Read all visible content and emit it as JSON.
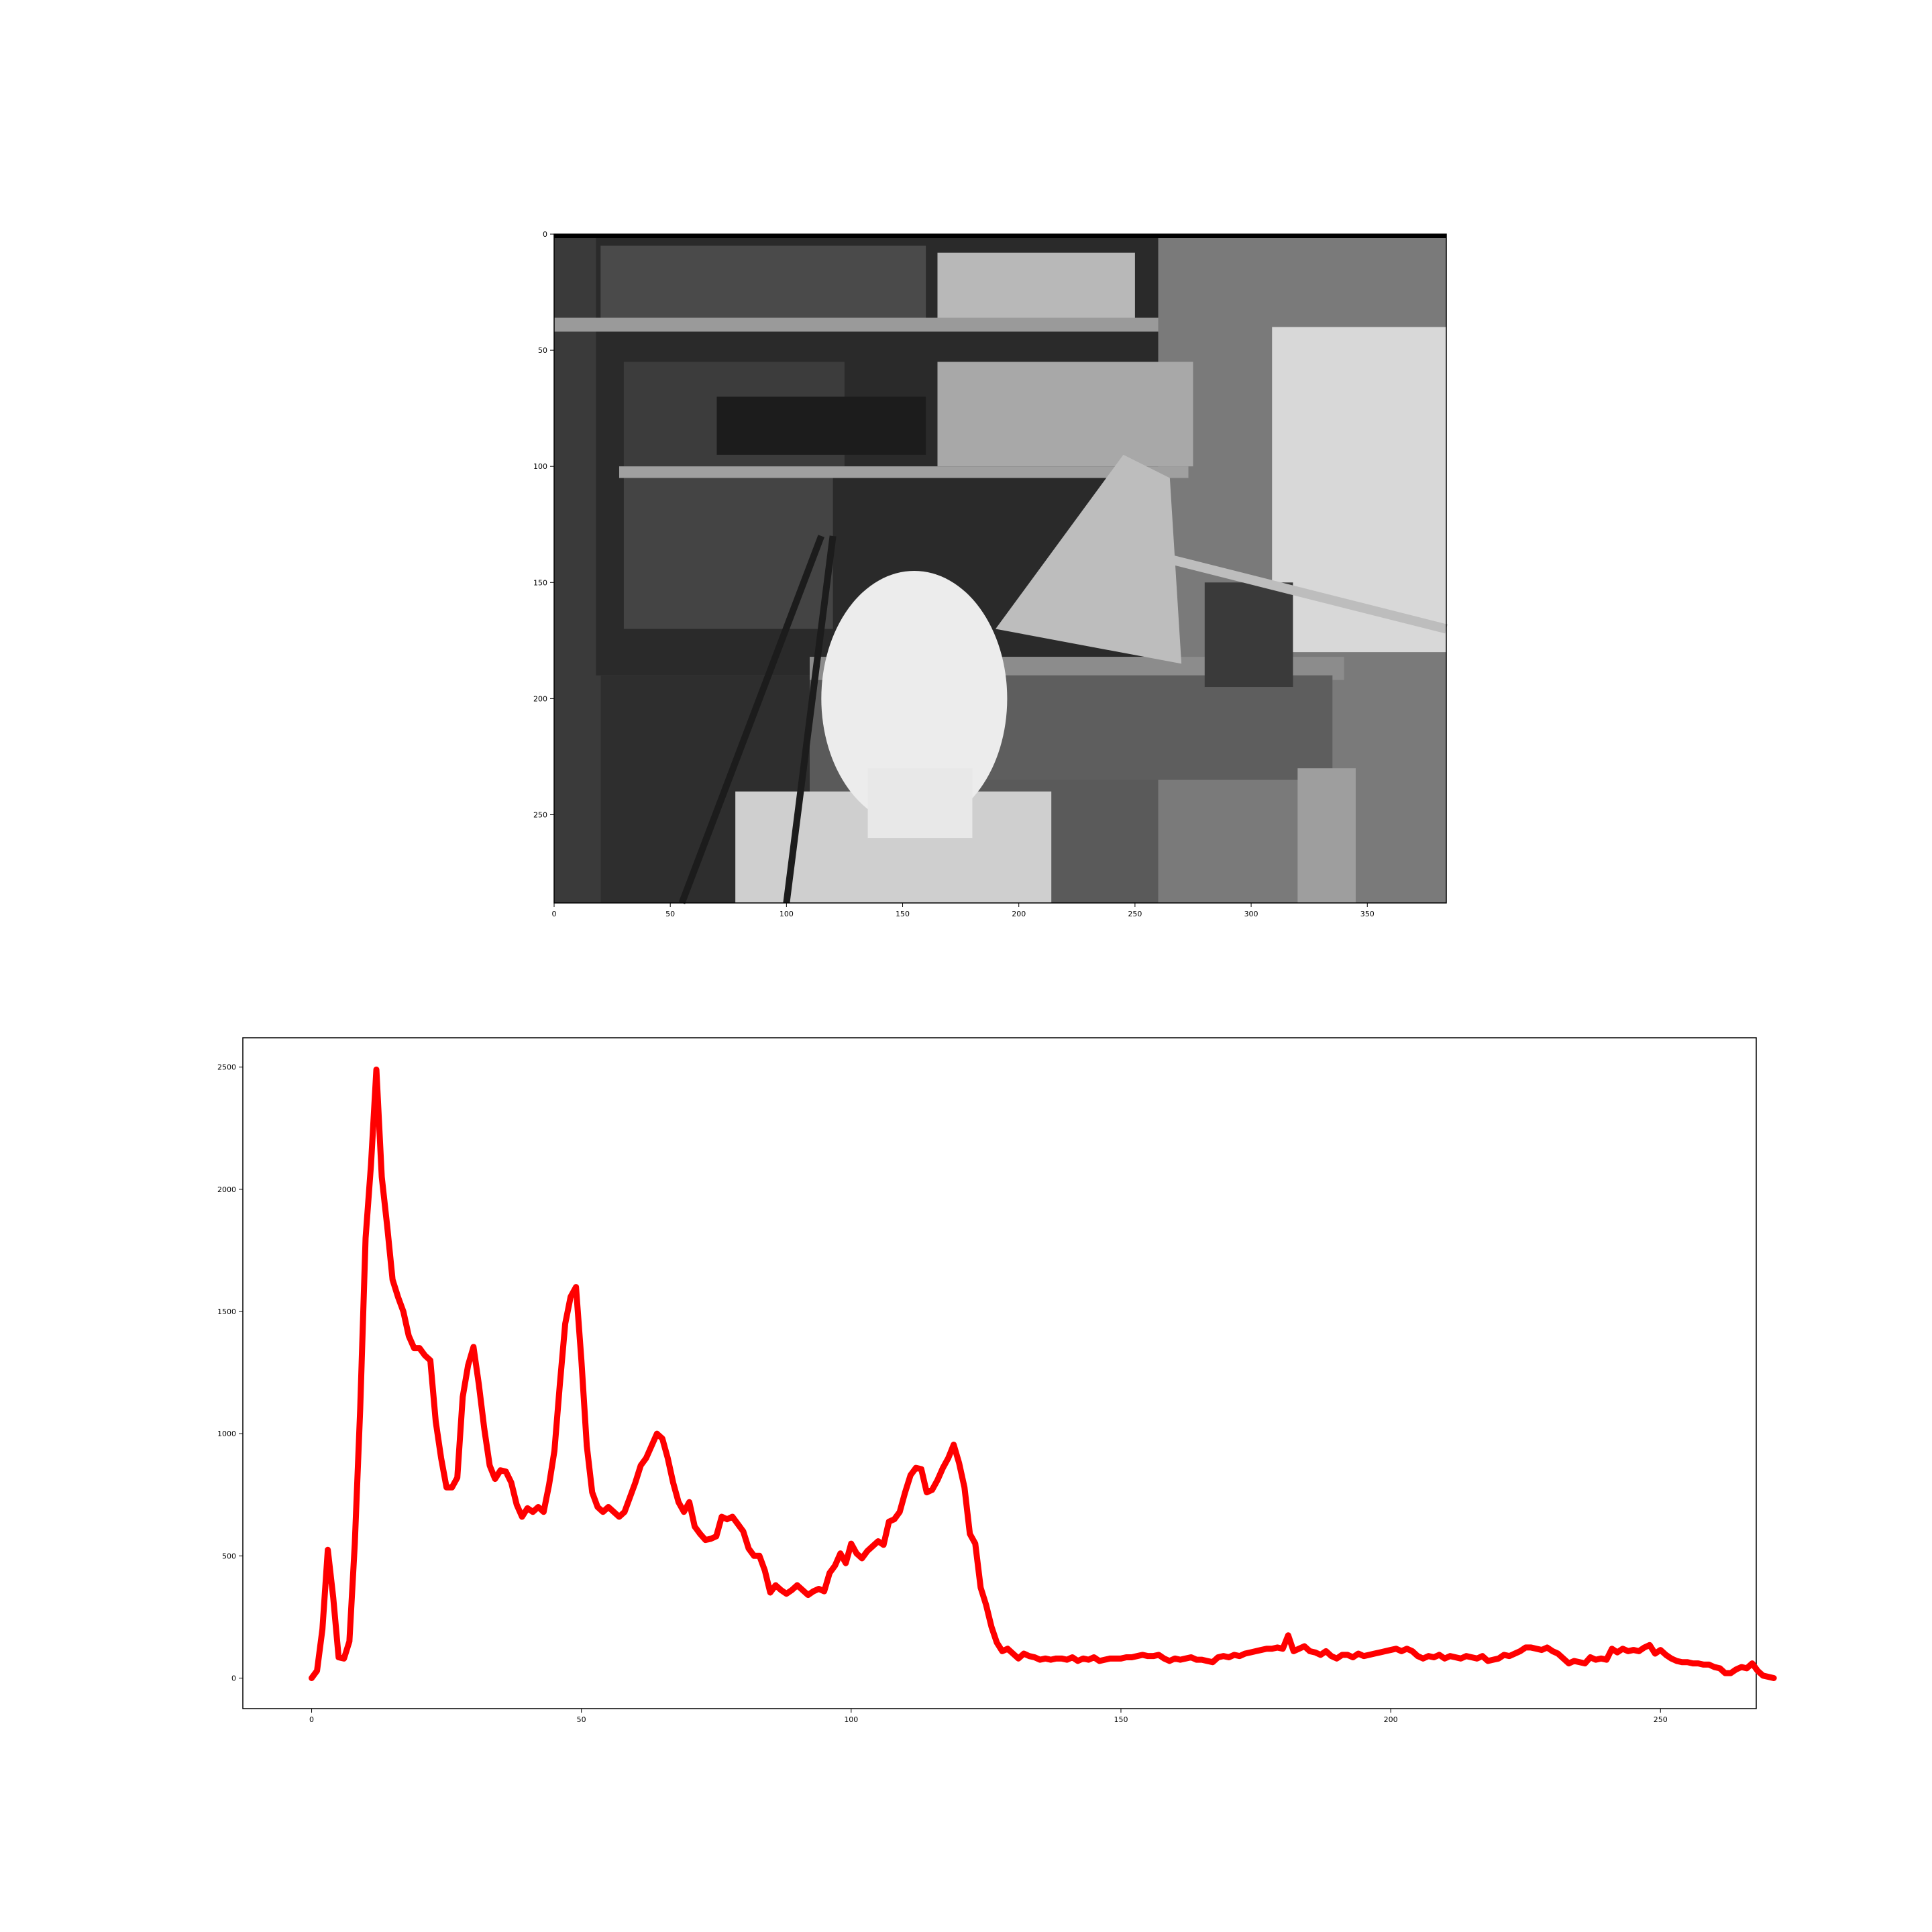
{
  "figure": {
    "background": "#ffffff"
  },
  "image_panel": {
    "description_icon": "grayscale-photo",
    "x_ticks": [
      "0",
      "50",
      "100",
      "150",
      "200",
      "250",
      "300",
      "350"
    ],
    "y_ticks": [
      "0",
      "50",
      "100",
      "150",
      "200",
      "250"
    ],
    "x_range": [
      0,
      384
    ],
    "y_range": [
      0,
      288
    ],
    "scene_colors": {
      "dark": "#1c1c1c",
      "mid": "#6e6e6e",
      "light": "#bdbdbd",
      "bright": "#ececec"
    }
  },
  "chart_data": {
    "type": "line",
    "title": "",
    "xlabel": "",
    "ylabel": "",
    "xlim": [
      -12.75,
      267.75
    ],
    "ylim": [
      -125,
      2620
    ],
    "x_ticks": [
      "0",
      "50",
      "100",
      "150",
      "200",
      "250"
    ],
    "y_ticks": [
      "0",
      "500",
      "1000",
      "1500",
      "2000",
      "2500"
    ],
    "grid": false,
    "legend": "none",
    "line_color": "#ff0000",
    "series": [
      {
        "points": [
          [
            0,
            0
          ],
          [
            1,
            30
          ],
          [
            2,
            200
          ],
          [
            3,
            525
          ],
          [
            4,
            330
          ],
          [
            5,
            85
          ],
          [
            6,
            80
          ],
          [
            7,
            150
          ],
          [
            8,
            550
          ],
          [
            9,
            1100
          ],
          [
            10,
            1800
          ],
          [
            11,
            2100
          ],
          [
            12,
            2490
          ],
          [
            13,
            2050
          ],
          [
            14,
            1850
          ],
          [
            15,
            1630
          ],
          [
            16,
            1560
          ],
          [
            17,
            1500
          ],
          [
            18,
            1400
          ],
          [
            19,
            1350
          ],
          [
            20,
            1350
          ],
          [
            21,
            1320
          ],
          [
            22,
            1300
          ],
          [
            23,
            1050
          ],
          [
            24,
            900
          ],
          [
            25,
            780
          ],
          [
            26,
            780
          ],
          [
            27,
            820
          ],
          [
            28,
            1150
          ],
          [
            29,
            1280
          ],
          [
            30,
            1355
          ],
          [
            31,
            1200
          ],
          [
            32,
            1020
          ],
          [
            33,
            870
          ],
          [
            34,
            815
          ],
          [
            35,
            850
          ],
          [
            36,
            845
          ],
          [
            37,
            800
          ],
          [
            38,
            710
          ],
          [
            39,
            660
          ],
          [
            40,
            695
          ],
          [
            41,
            680
          ],
          [
            42,
            700
          ],
          [
            43,
            680
          ],
          [
            44,
            790
          ],
          [
            45,
            930
          ],
          [
            46,
            1200
          ],
          [
            47,
            1450
          ],
          [
            48,
            1560
          ],
          [
            49,
            1600
          ],
          [
            50,
            1300
          ],
          [
            51,
            950
          ],
          [
            52,
            760
          ],
          [
            53,
            700
          ],
          [
            54,
            680
          ],
          [
            55,
            700
          ],
          [
            56,
            680
          ],
          [
            57,
            660
          ],
          [
            58,
            680
          ],
          [
            59,
            740
          ],
          [
            60,
            800
          ],
          [
            61,
            870
          ],
          [
            62,
            900
          ],
          [
            63,
            950
          ],
          [
            64,
            1000
          ],
          [
            65,
            980
          ],
          [
            66,
            900
          ],
          [
            67,
            800
          ],
          [
            68,
            720
          ],
          [
            69,
            680
          ],
          [
            70,
            720
          ],
          [
            71,
            620
          ],
          [
            72,
            590
          ],
          [
            73,
            565
          ],
          [
            74,
            570
          ],
          [
            75,
            580
          ],
          [
            76,
            660
          ],
          [
            77,
            650
          ],
          [
            78,
            660
          ],
          [
            79,
            630
          ],
          [
            80,
            600
          ],
          [
            81,
            530
          ],
          [
            82,
            500
          ],
          [
            83,
            500
          ],
          [
            84,
            440
          ],
          [
            85,
            350
          ],
          [
            86,
            380
          ],
          [
            87,
            360
          ],
          [
            88,
            345
          ],
          [
            89,
            360
          ],
          [
            90,
            380
          ],
          [
            91,
            360
          ],
          [
            92,
            340
          ],
          [
            93,
            355
          ],
          [
            94,
            365
          ],
          [
            95,
            355
          ],
          [
            96,
            430
          ],
          [
            97,
            460
          ],
          [
            98,
            510
          ],
          [
            99,
            470
          ],
          [
            100,
            550
          ],
          [
            101,
            510
          ],
          [
            102,
            490
          ],
          [
            103,
            520
          ],
          [
            104,
            540
          ],
          [
            105,
            560
          ],
          [
            106,
            545
          ],
          [
            107,
            640
          ],
          [
            108,
            650
          ],
          [
            109,
            680
          ],
          [
            110,
            760
          ],
          [
            111,
            830
          ],
          [
            112,
            860
          ],
          [
            113,
            855
          ],
          [
            114,
            760
          ],
          [
            115,
            770
          ],
          [
            116,
            810
          ],
          [
            117,
            860
          ],
          [
            118,
            900
          ],
          [
            119,
            955
          ],
          [
            120,
            880
          ],
          [
            121,
            780
          ],
          [
            122,
            590
          ],
          [
            123,
            550
          ],
          [
            124,
            370
          ],
          [
            125,
            300
          ],
          [
            126,
            210
          ],
          [
            127,
            145
          ],
          [
            128,
            110
          ],
          [
            129,
            120
          ],
          [
            130,
            100
          ],
          [
            131,
            80
          ],
          [
            132,
            100
          ],
          [
            133,
            90
          ],
          [
            134,
            85
          ],
          [
            135,
            75
          ],
          [
            136,
            80
          ],
          [
            137,
            75
          ],
          [
            138,
            80
          ],
          [
            139,
            80
          ],
          [
            140,
            75
          ],
          [
            141,
            85
          ],
          [
            142,
            70
          ],
          [
            143,
            80
          ],
          [
            144,
            75
          ],
          [
            145,
            85
          ],
          [
            146,
            70
          ],
          [
            147,
            75
          ],
          [
            148,
            80
          ],
          [
            149,
            80
          ],
          [
            150,
            80
          ],
          [
            151,
            85
          ],
          [
            152,
            85
          ],
          [
            153,
            90
          ],
          [
            154,
            95
          ],
          [
            155,
            90
          ],
          [
            156,
            90
          ],
          [
            157,
            95
          ],
          [
            158,
            80
          ],
          [
            159,
            70
          ],
          [
            160,
            80
          ],
          [
            161,
            75
          ],
          [
            162,
            80
          ],
          [
            163,
            85
          ],
          [
            164,
            75
          ],
          [
            165,
            75
          ],
          [
            166,
            70
          ],
          [
            167,
            65
          ],
          [
            168,
            85
          ],
          [
            169,
            90
          ],
          [
            170,
            85
          ],
          [
            171,
            95
          ],
          [
            172,
            90
          ],
          [
            173,
            100
          ],
          [
            174,
            105
          ],
          [
            175,
            110
          ],
          [
            176,
            115
          ],
          [
            177,
            120
          ],
          [
            178,
            120
          ],
          [
            179,
            125
          ],
          [
            180,
            120
          ],
          [
            181,
            175
          ],
          [
            182,
            110
          ],
          [
            183,
            120
          ],
          [
            184,
            130
          ],
          [
            185,
            110
          ],
          [
            186,
            105
          ],
          [
            187,
            95
          ],
          [
            188,
            110
          ],
          [
            189,
            90
          ],
          [
            190,
            80
          ],
          [
            191,
            95
          ],
          [
            192,
            95
          ],
          [
            193,
            85
          ],
          [
            194,
            100
          ],
          [
            195,
            90
          ],
          [
            196,
            95
          ],
          [
            197,
            100
          ],
          [
            198,
            105
          ],
          [
            199,
            110
          ],
          [
            200,
            115
          ],
          [
            201,
            120
          ],
          [
            202,
            110
          ],
          [
            203,
            120
          ],
          [
            204,
            110
          ],
          [
            205,
            90
          ],
          [
            206,
            80
          ],
          [
            207,
            90
          ],
          [
            208,
            85
          ],
          [
            209,
            95
          ],
          [
            210,
            80
          ],
          [
            211,
            90
          ],
          [
            212,
            85
          ],
          [
            213,
            80
          ],
          [
            214,
            90
          ],
          [
            215,
            85
          ],
          [
            216,
            80
          ],
          [
            217,
            90
          ],
          [
            218,
            70
          ],
          [
            219,
            75
          ],
          [
            220,
            80
          ],
          [
            221,
            95
          ],
          [
            222,
            90
          ],
          [
            223,
            100
          ],
          [
            224,
            110
          ],
          [
            225,
            125
          ],
          [
            226,
            125
          ],
          [
            227,
            120
          ],
          [
            228,
            115
          ],
          [
            229,
            125
          ],
          [
            230,
            110
          ],
          [
            231,
            100
          ],
          [
            232,
            80
          ],
          [
            233,
            60
          ],
          [
            234,
            70
          ],
          [
            235,
            65
          ],
          [
            236,
            60
          ],
          [
            237,
            85
          ],
          [
            238,
            75
          ],
          [
            239,
            80
          ],
          [
            240,
            75
          ],
          [
            241,
            120
          ],
          [
            242,
            105
          ],
          [
            243,
            120
          ],
          [
            244,
            110
          ],
          [
            245,
            115
          ],
          [
            246,
            110
          ],
          [
            247,
            125
          ],
          [
            248,
            135
          ],
          [
            249,
            100
          ],
          [
            250,
            115
          ],
          [
            251,
            95
          ],
          [
            252,
            80
          ],
          [
            253,
            70
          ],
          [
            254,
            65
          ],
          [
            255,
            65
          ],
          [
            256,
            60
          ],
          [
            257,
            60
          ],
          [
            258,
            55
          ],
          [
            259,
            55
          ],
          [
            260,
            45
          ],
          [
            261,
            40
          ],
          [
            262,
            20
          ],
          [
            263,
            20
          ],
          [
            264,
            35
          ],
          [
            265,
            45
          ],
          [
            266,
            40
          ],
          [
            267,
            60
          ],
          [
            268,
            30
          ],
          [
            269,
            10
          ],
          [
            270,
            5
          ],
          [
            271,
            0
          ]
        ]
      }
    ]
  }
}
